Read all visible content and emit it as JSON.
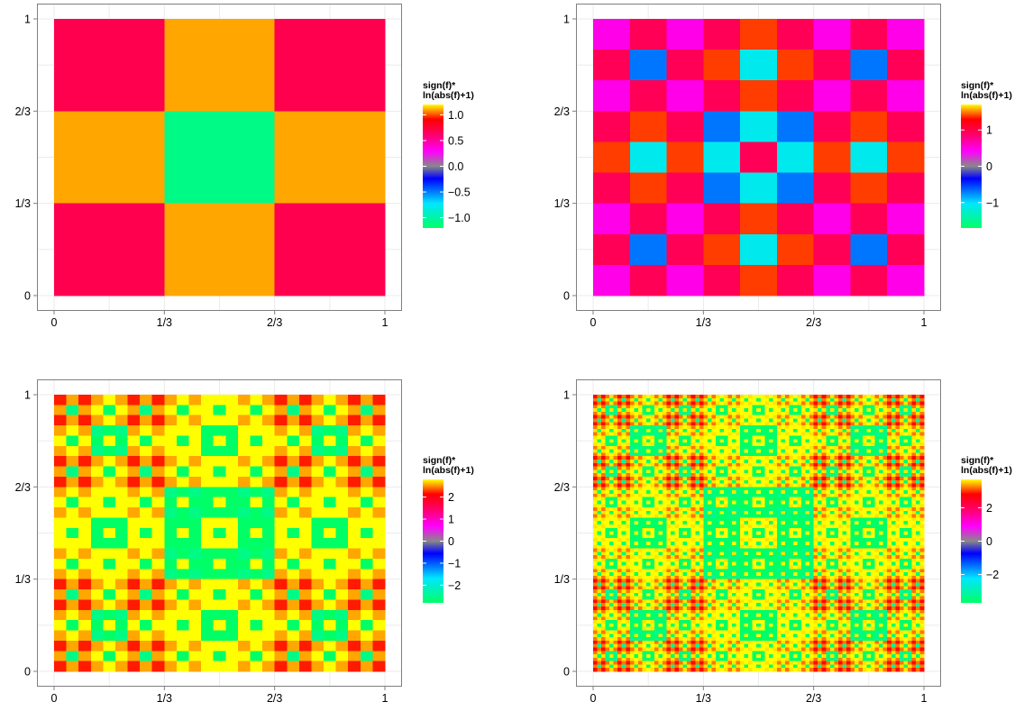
{
  "chart_data": [
    {
      "type": "heatmap",
      "title": "",
      "xlabel": "",
      "ylabel": "",
      "xlim": [
        0,
        1
      ],
      "ylim": [
        0,
        1
      ],
      "x_ticks": [
        "0",
        "1/3",
        "2/3",
        "1"
      ],
      "y_ticks": [
        "0",
        "1/3",
        "2/3",
        "1"
      ],
      "grid_cells": 3,
      "cell_values_top_to_bottom": [
        [
          0.69,
          1.1,
          0.69
        ],
        [
          1.1,
          -1.1,
          1.1
        ],
        [
          0.69,
          1.1,
          0.69
        ]
      ],
      "legend": {
        "title_lines": [
          "sign(f)*",
          "ln(abs(f)+1)"
        ],
        "range": [
          -1.2,
          1.2
        ],
        "ticks": [
          {
            "value": 1.0,
            "label": "1.0"
          },
          {
            "value": 0.5,
            "label": "0.5"
          },
          {
            "value": 0.0,
            "label": "0.0"
          },
          {
            "value": -0.5,
            "label": "−0.5"
          },
          {
            "value": -1.0,
            "label": "−1.0"
          }
        ],
        "placement": "right"
      }
    },
    {
      "type": "heatmap",
      "title": "",
      "xlabel": "",
      "ylabel": "",
      "xlim": [
        0,
        1
      ],
      "ylim": [
        0,
        1
      ],
      "x_ticks": [
        "0",
        "1/3",
        "2/3",
        "1"
      ],
      "y_ticks": [
        "0",
        "1/3",
        "2/3",
        "1"
      ],
      "grid_cells": 9,
      "cell_values_top_to_bottom": [
        [
          0.48,
          0.95,
          0.48,
          0.95,
          1.39,
          0.95,
          0.48,
          0.95,
          0.48
        ],
        [
          0.95,
          -0.69,
          0.95,
          1.39,
          -1.1,
          1.39,
          0.95,
          -0.69,
          0.95
        ],
        [
          0.48,
          0.95,
          0.48,
          0.95,
          1.39,
          0.95,
          0.48,
          0.95,
          0.48
        ],
        [
          0.95,
          1.39,
          0.95,
          -0.69,
          -1.1,
          -0.69,
          0.95,
          1.39,
          0.95
        ],
        [
          1.39,
          -1.1,
          1.39,
          -1.1,
          0.95,
          -1.1,
          1.39,
          -1.1,
          1.39
        ],
        [
          0.95,
          1.39,
          0.95,
          -0.69,
          -1.1,
          -0.69,
          0.95,
          1.39,
          0.95
        ],
        [
          0.48,
          0.95,
          0.48,
          0.95,
          1.39,
          0.95,
          0.48,
          0.95,
          0.48
        ],
        [
          0.95,
          -0.69,
          0.95,
          1.39,
          -1.1,
          1.39,
          0.95,
          -0.69,
          0.95
        ],
        [
          0.48,
          0.95,
          0.48,
          0.95,
          1.39,
          0.95,
          0.48,
          0.95,
          0.48
        ]
      ],
      "legend": {
        "title_lines": [
          "sign(f)*",
          "ln(abs(f)+1)"
        ],
        "range": [
          -1.7,
          1.7
        ],
        "ticks": [
          {
            "value": 1,
            "label": "1"
          },
          {
            "value": 0,
            "label": "0"
          },
          {
            "value": -1,
            "label": "−1"
          }
        ],
        "placement": "right"
      }
    },
    {
      "type": "heatmap",
      "title": "",
      "xlabel": "",
      "ylabel": "",
      "xlim": [
        0,
        1
      ],
      "ylim": [
        0,
        1
      ],
      "x_ticks": [
        "0",
        "1/3",
        "2/3",
        "1"
      ],
      "y_ticks": [
        "0",
        "1/3",
        "2/3",
        "1"
      ],
      "grid_cells": 27,
      "pattern": "self-similar product of level 1-3 cell factors (estimated)",
      "legend": {
        "title_lines": [
          "sign(f)*",
          "ln(abs(f)+1)"
        ],
        "range": [
          -2.8,
          2.8
        ],
        "ticks": [
          {
            "value": 2,
            "label": "2"
          },
          {
            "value": 1,
            "label": "1"
          },
          {
            "value": 0,
            "label": "0"
          },
          {
            "value": -1,
            "label": "−1"
          },
          {
            "value": -2,
            "label": "−2"
          }
        ],
        "placement": "right"
      }
    },
    {
      "type": "heatmap",
      "title": "",
      "xlabel": "",
      "ylabel": "",
      "xlim": [
        0,
        1
      ],
      "ylim": [
        0,
        1
      ],
      "x_ticks": [
        "0",
        "1/3",
        "2/3",
        "1"
      ],
      "y_ticks": [
        "0",
        "1/3",
        "2/3",
        "1"
      ],
      "grid_cells": 81,
      "pattern": "self-similar product of level 1-4 cell factors (estimated)",
      "legend": {
        "title_lines": [
          "sign(f)*",
          "ln(abs(f)+1)"
        ],
        "range": [
          -3.7,
          3.7
        ],
        "ticks": [
          {
            "value": 2,
            "label": "2"
          },
          {
            "value": 0,
            "label": "0"
          },
          {
            "value": -2,
            "label": "−2"
          }
        ],
        "placement": "right"
      }
    }
  ],
  "colors": {
    "stops": [
      "#00ff66",
      "#00e6ff",
      "#0000ff",
      "#888888",
      "#ff00ff",
      "#ff0066",
      "#ff0000",
      "#ffff00"
    ],
    "panel_border": "#7f7f7f",
    "grid_line": "#ebebeb",
    "tick_text": "#000000"
  }
}
